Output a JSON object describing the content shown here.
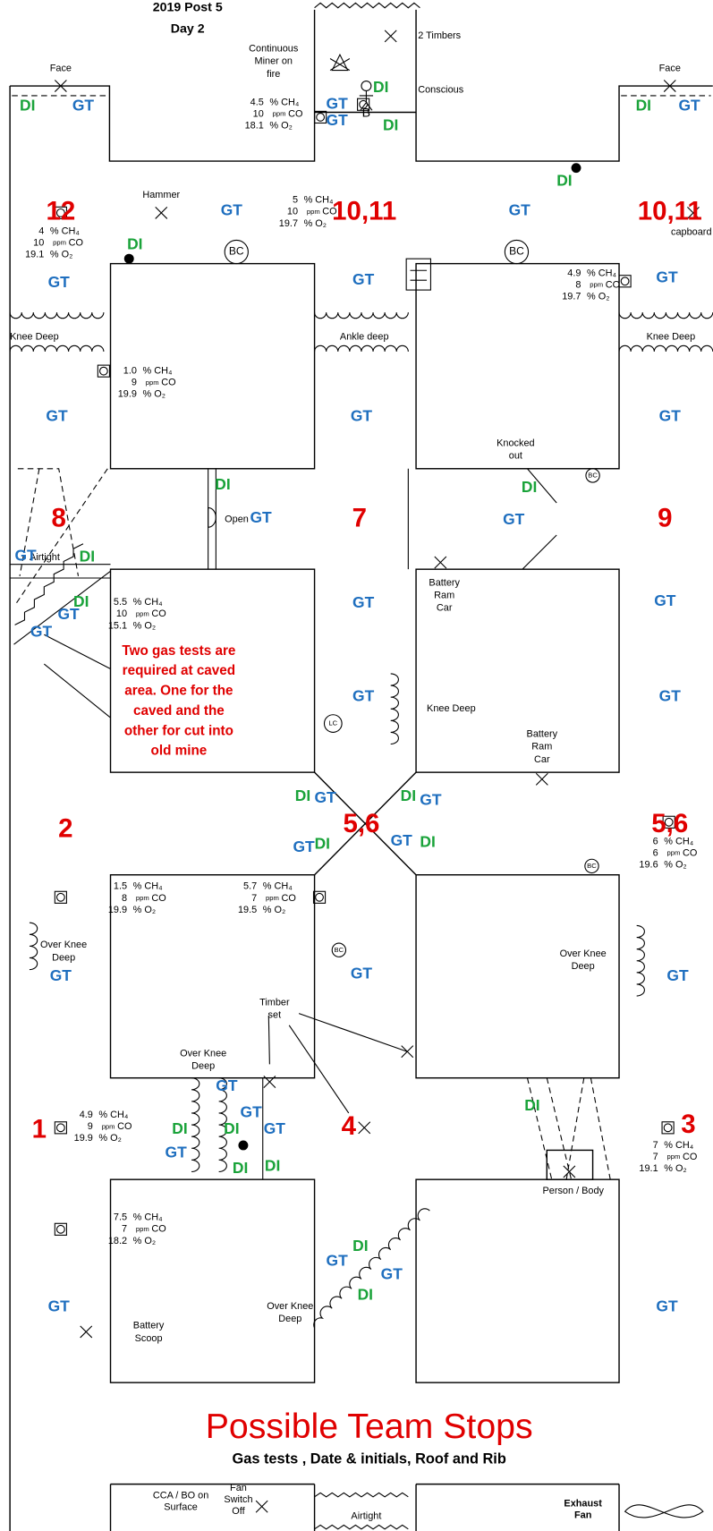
{
  "header": {
    "title": "2019 Post 5",
    "subtitle": "Day 2"
  },
  "units": {
    "ch4": "% CH₄",
    "ppm": "ppm",
    "co": "CO",
    "o2": "% O₂"
  },
  "codes": {
    "gt": "GT",
    "di": "DI"
  },
  "stops": [
    "12",
    "10,11",
    "10,11",
    "8",
    "7",
    "9",
    "2",
    "5,6",
    "5,6",
    "1",
    "4",
    "3"
  ],
  "gas": [
    {
      "ch4": "4.5",
      "co": "10",
      "o2": "18.1"
    },
    {
      "ch4": "5",
      "co": "10",
      "o2": "19.7"
    },
    {
      "ch4": "4",
      "co": "10",
      "o2": "19.1"
    },
    {
      "ch4": "4.9",
      "co": "8",
      "o2": "19.7"
    },
    {
      "ch4": "1.0",
      "co": "9",
      "o2": "19.9"
    },
    {
      "ch4": "5.5",
      "co": "10",
      "o2": "15.1"
    },
    {
      "ch4": "6",
      "co": "6",
      "o2": "19.6"
    },
    {
      "ch4": "1.5",
      "co": "8",
      "o2": "19.9"
    },
    {
      "ch4": "5.7",
      "co": "7",
      "o2": "19.5"
    },
    {
      "ch4": "4.9",
      "co": "9",
      "o2": "19.9"
    },
    {
      "ch4": "7",
      "co": "7",
      "o2": "19.1"
    },
    {
      "ch4": "7.5",
      "co": "7",
      "o2": "18.2"
    }
  ],
  "labels": [
    [
      "2 Timbers"
    ],
    [
      "Conscious"
    ],
    [
      "Face"
    ],
    [
      "Face"
    ],
    [
      "Continuous",
      "Miner on",
      "fire"
    ],
    [
      "Hammer"
    ],
    [
      "capboard"
    ],
    [
      "Knee Deep"
    ],
    [
      "Ankle deep"
    ],
    [
      "Knee Deep"
    ],
    [
      "Knocked",
      "out"
    ],
    [
      "Open"
    ],
    [
      "Airtight"
    ],
    [
      "Battery",
      "Ram",
      "Car"
    ],
    [
      "Knee Deep"
    ],
    [
      "Battery",
      "Ram",
      "Car"
    ],
    [
      "Two gas tests are",
      "required at caved",
      "area. One for the",
      "caved and the",
      "other for cut into",
      "old mine"
    ],
    [
      "Over Knee",
      "Deep"
    ],
    [
      "Over Knee",
      "Deep"
    ],
    [
      "Timber",
      "set"
    ],
    [
      "Over Knee",
      "Deep"
    ],
    [
      "Person / Body"
    ],
    [
      "Battery",
      "Scoop"
    ],
    [
      "Over Knee",
      "Deep"
    ],
    [
      "B"
    ],
    [
      "BC"
    ],
    [
      "BC"
    ],
    [
      "BC"
    ],
    [
      "BC"
    ],
    [
      "BC"
    ],
    [
      "LC"
    ]
  ],
  "legend": {
    "title": "Possible Team Stops",
    "subtitle": "Gas tests , Date & initials, Roof and Rib",
    "items": [
      [
        "CCA / BO on",
        "Surface"
      ],
      [
        "Fan",
        "Switch",
        "Off"
      ],
      [
        "Airtight"
      ],
      [
        "Exhaust",
        "Fan"
      ]
    ]
  }
}
